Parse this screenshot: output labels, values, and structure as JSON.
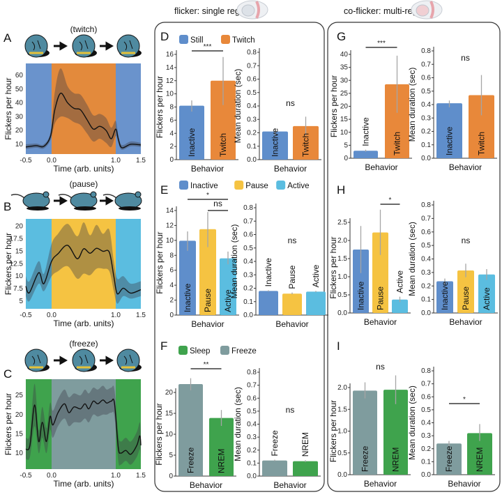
{
  "titles": {
    "single": "flicker: single region",
    "multi": "co-flicker: multi-region"
  },
  "letters": [
    "A",
    "B",
    "C",
    "D",
    "E",
    "F",
    "G",
    "H",
    "I"
  ],
  "behaviors": {
    "A": "(twitch)",
    "B": "(pause)",
    "C": "(freeze)"
  },
  "legends": {
    "D": [
      {
        "label": "Still",
        "color": "#5f8ecb"
      },
      {
        "label": "Twitch",
        "color": "#e8883a"
      }
    ],
    "E": [
      {
        "label": "Inactive",
        "color": "#5f8ecb"
      },
      {
        "label": "Pause",
        "color": "#f5c342"
      },
      {
        "label": "Active",
        "color": "#5bbde0"
      }
    ],
    "F": [
      {
        "label": "Sleep",
        "color": "#3fa34d"
      },
      {
        "label": "Freeze",
        "color": "#7f9c9e"
      }
    ]
  },
  "chart_data": [
    {
      "panel": "A",
      "type": "line",
      "ylabel": "Flickers per hour",
      "xlabel": "Time (arb. units)",
      "xticks": [
        "-0.5",
        "0.0",
        "1.0",
        "1.5"
      ],
      "yticks": [
        10,
        20,
        30,
        40,
        50,
        60
      ],
      "ylim": [
        2.9,
        68.6
      ],
      "regions": [
        {
          "from": -0.5,
          "to": 0,
          "color": "#6a93cc"
        },
        {
          "from": 0,
          "to": 1,
          "color": "#e38a3c"
        },
        {
          "from": 1,
          "to": 1.5,
          "color": "#6a93cc"
        }
      ],
      "points": [
        [
          -0.5,
          8,
          6.5,
          10
        ],
        [
          -0.3,
          9,
          7.5,
          10.5
        ],
        [
          -0.15,
          8.5,
          7,
          10
        ],
        [
          -0.02,
          16,
          13,
          19
        ],
        [
          0.05,
          35,
          25,
          48
        ],
        [
          0.14,
          47,
          30,
          65
        ],
        [
          0.25,
          40,
          29,
          52
        ],
        [
          0.35,
          36,
          26,
          47
        ],
        [
          0.45,
          35,
          24,
          46
        ],
        [
          0.55,
          28,
          18,
          39
        ],
        [
          0.65,
          21,
          12,
          31
        ],
        [
          0.75,
          23,
          14,
          32
        ],
        [
          0.85,
          20,
          11,
          29
        ],
        [
          0.93,
          14,
          8,
          22
        ],
        [
          1.0,
          21,
          16,
          27
        ],
        [
          1.05,
          14,
          11,
          17
        ],
        [
          1.12,
          7.5,
          6,
          9.5
        ],
        [
          1.3,
          10,
          8.5,
          12
        ],
        [
          1.5,
          9.5,
          8,
          11
        ]
      ]
    },
    {
      "panel": "B",
      "type": "line",
      "ylabel": "Flickers per hour",
      "xlabel": "Time (arb. units)",
      "xticks": [
        "-0.5",
        "0.0",
        "1.0",
        "1.5"
      ],
      "yticks": [
        5,
        7.5,
        10,
        12.5,
        15,
        17.5,
        20
      ],
      "ylim": [
        3.46,
        21.5
      ],
      "regions": [
        {
          "from": -0.5,
          "to": 0,
          "color": "#5bbde0"
        },
        {
          "from": 0,
          "to": 1,
          "color": "#f5c342"
        },
        {
          "from": 1,
          "to": 1.5,
          "color": "#5bbde0"
        }
      ],
      "points": [
        [
          -0.5,
          8,
          6,
          10
        ],
        [
          -0.43,
          6.7,
          5,
          9
        ],
        [
          -0.25,
          10.7,
          8.5,
          13
        ],
        [
          -0.15,
          8.5,
          7,
          10.5
        ],
        [
          0.0,
          13,
          10,
          16.5
        ],
        [
          0.1,
          14.5,
          11,
          18.5
        ],
        [
          0.25,
          16.2,
          12,
          20.5
        ],
        [
          0.4,
          13.5,
          9.5,
          18
        ],
        [
          0.5,
          15.5,
          10.5,
          20.8
        ],
        [
          0.6,
          14.6,
          10.2,
          18.2
        ],
        [
          0.7,
          15.6,
          11.5,
          20.3
        ],
        [
          0.8,
          15,
          11.5,
          18.5
        ],
        [
          0.9,
          14.8,
          11,
          19.3
        ],
        [
          0.97,
          10,
          7,
          13
        ],
        [
          1.03,
          6.5,
          4.5,
          9.5
        ],
        [
          1.15,
          7.6,
          6,
          10
        ],
        [
          1.3,
          6.6,
          5.5,
          8.5
        ],
        [
          1.5,
          7.3,
          6,
          9
        ]
      ]
    },
    {
      "panel": "C",
      "type": "line",
      "ylabel": "Flickers per hour",
      "xlabel": "Time (arb. units)",
      "xticks": [
        "-0.5",
        "0.0",
        "1.0",
        "1.5"
      ],
      "yticks": [
        10,
        15,
        20,
        25
      ],
      "ylim": [
        5.84,
        29.2
      ],
      "regions": [
        {
          "from": -0.5,
          "to": 0,
          "color": "#3fa34d"
        },
        {
          "from": 0,
          "to": 1,
          "color": "#7f9c9e"
        },
        {
          "from": 1,
          "to": 1.5,
          "color": "#3fa34d"
        }
      ],
      "points": [
        [
          -0.5,
          11,
          8.5,
          14
        ],
        [
          -0.42,
          12,
          9,
          15
        ],
        [
          -0.33,
          22.5,
          17,
          28
        ],
        [
          -0.25,
          13,
          10,
          16
        ],
        [
          -0.18,
          18,
          14,
          22
        ],
        [
          -0.1,
          13,
          10,
          16.5
        ],
        [
          -0.03,
          19.5,
          16,
          23
        ],
        [
          0.02,
          17.3,
          14,
          21
        ],
        [
          0.1,
          20.5,
          17,
          24
        ],
        [
          0.2,
          22.8,
          19,
          26.5
        ],
        [
          0.27,
          20.5,
          17,
          24.5
        ],
        [
          0.35,
          22,
          18,
          25.5
        ],
        [
          0.45,
          21.5,
          18,
          25
        ],
        [
          0.52,
          22.8,
          19,
          26.5
        ],
        [
          0.58,
          21.5,
          18,
          25.5
        ],
        [
          0.65,
          23.5,
          20,
          27
        ],
        [
          0.72,
          22.8,
          19.5,
          26.5
        ],
        [
          0.8,
          23.8,
          20,
          27.5
        ],
        [
          0.86,
          23,
          20,
          26.5
        ],
        [
          0.93,
          23.5,
          20.5,
          27
        ],
        [
          0.98,
          23,
          19.5,
          26.5
        ],
        [
          1.05,
          11.5,
          8,
          15
        ],
        [
          1.1,
          10,
          7,
          13
        ],
        [
          1.2,
          10.7,
          8,
          14
        ],
        [
          1.3,
          9.7,
          7,
          13
        ],
        [
          1.42,
          12,
          9,
          15.5
        ],
        [
          1.48,
          14.5,
          11,
          18
        ],
        [
          1.5,
          12,
          9,
          15
        ]
      ]
    },
    {
      "panel": "D",
      "type": "bar",
      "ylabel": "Flickers per hour",
      "xlabel": "Behavior",
      "yticks": [
        "0",
        "2",
        "4",
        "6",
        "8",
        "10",
        "12",
        "14",
        "16"
      ],
      "ymax": 16,
      "bars": [
        {
          "label": "Inactive",
          "value": 8.2,
          "err": [
            7.3,
            9.0
          ],
          "color": "#5f8ecb"
        },
        {
          "label": "Twitch",
          "value": 12.0,
          "err": [
            8.3,
            15.6
          ],
          "color": "#e8883a"
        }
      ],
      "sig": [
        {
          "from": 0,
          "to": 1,
          "label": "***"
        }
      ]
    },
    {
      "panel": "D",
      "type": "bar",
      "ylabel": "Mean duration (sec)",
      "xlabel": "Behavior",
      "yticks": [
        "0.0",
        "0.1",
        "0.2",
        "0.3",
        "0.4",
        "0.5",
        "0.6",
        "0.7",
        "0.8"
      ],
      "ymax": 0.8,
      "bars": [
        {
          "label": "Inactive",
          "value": 0.21,
          "err": [
            0.18,
            0.23
          ],
          "color": "#5f8ecb"
        },
        {
          "label": "Twitch",
          "value": 0.25,
          "err": [
            0.18,
            0.32
          ],
          "color": "#e8883a"
        }
      ],
      "sig": [
        {
          "from": null,
          "to": null,
          "label": "ns"
        }
      ]
    },
    {
      "panel": "E",
      "type": "bar",
      "ylabel": "Flickers per hour",
      "xlabel": "Behavior",
      "yticks": [
        "0",
        "2",
        "4",
        "6",
        "8",
        "10",
        "12",
        "14"
      ],
      "ymax": 14,
      "bars": [
        {
          "label": "Inactive",
          "value": 9.95,
          "err": [
            8.6,
            11.2
          ],
          "color": "#5f8ecb"
        },
        {
          "label": "Pause",
          "value": 11.5,
          "err": [
            9.1,
            13.8
          ],
          "color": "#f5c342"
        },
        {
          "label": "Active",
          "value": 7.6,
          "err": [
            6.8,
            8.5
          ],
          "color": "#5bbde0"
        }
      ],
      "sig": [
        {
          "from": 0,
          "to": 2,
          "label": "*"
        },
        {
          "from": 1,
          "to": 2,
          "label": "ns"
        }
      ]
    },
    {
      "panel": "E",
      "type": "bar",
      "ylabel": "Mean duration (sec)",
      "xlabel": "Behavior",
      "yticks": [
        "0.0",
        "0.1",
        "0.2",
        "0.3",
        "0.4",
        "0.5",
        "0.6",
        "0.7",
        "0.8"
      ],
      "ymax": 0.8,
      "bars": [
        {
          "label": "Inactive",
          "value": 0.18,
          "err": [
            0.175,
            0.185
          ],
          "color": "#5f8ecb",
          "outside": true
        },
        {
          "label": "Pause",
          "value": 0.16,
          "err": [
            0.155,
            0.168
          ],
          "color": "#f5c342",
          "outside": true
        },
        {
          "label": "Active",
          "value": 0.175,
          "err": [
            0.17,
            0.18
          ],
          "color": "#5bbde0",
          "outside": true
        }
      ],
      "sig": [
        {
          "from": null,
          "to": null,
          "label": "ns"
        }
      ]
    },
    {
      "panel": "F",
      "type": "bar",
      "ylabel": "Flickers per hour",
      "xlabel": "Behavior",
      "yticks": [
        "0",
        "5",
        "10",
        "15",
        "20"
      ],
      "ymax": 20,
      "bars": [
        {
          "label": "Freeze",
          "value": 22.0,
          "err": [
            20.5,
            23.4
          ],
          "color": "#7f9c9e"
        },
        {
          "label": "NREM",
          "value": 13.9,
          "err": [
            12.0,
            15.8
          ],
          "color": "#3fa34d"
        }
      ],
      "sig": [
        {
          "from": 0,
          "to": 1,
          "label": "**"
        }
      ]
    },
    {
      "panel": "F",
      "type": "bar",
      "ylabel": "Mean duration (sec)",
      "xlabel": "Behavior",
      "yticks": [
        "0.0",
        "0.1",
        "0.2",
        "0.3",
        "0.4",
        "0.5",
        "0.6",
        "0.7",
        "0.8"
      ],
      "ymax": 0.8,
      "bars": [
        {
          "label": "Freeze",
          "value": 0.12,
          "err": [
            0.115,
            0.126
          ],
          "color": "#7f9c9e",
          "outside": true
        },
        {
          "label": "NREM",
          "value": 0.115,
          "err": [
            0.108,
            0.122
          ],
          "color": "#3fa34d",
          "outside": true
        }
      ],
      "sig": [
        {
          "from": null,
          "to": null,
          "label": "ns"
        }
      ]
    },
    {
      "panel": "G",
      "type": "bar",
      "ylabel": "Flickers per hour",
      "xlabel": "Behavior",
      "yticks": [
        "0",
        "5",
        "10",
        "15",
        "20",
        "25",
        "30",
        "35",
        "40"
      ],
      "ymax": 40,
      "bars": [
        {
          "label": "Inactive",
          "value": 2.9,
          "err": [
            2.5,
            3.3
          ],
          "color": "#5f8ecb",
          "outside": true
        },
        {
          "label": "Twitch",
          "value": 28.5,
          "err": [
            17.5,
            39.5
          ],
          "color": "#e8883a"
        }
      ],
      "sig": [
        {
          "from": 0,
          "to": 1,
          "label": "***"
        }
      ]
    },
    {
      "panel": "G",
      "type": "bar",
      "ylabel": "Mean duration (sec)",
      "xlabel": "Behavior",
      "yticks": [
        "0.0",
        "0.1",
        "0.2",
        "0.3",
        "0.4",
        "0.5",
        "0.6",
        "0.7",
        "0.8"
      ],
      "ymax": 0.8,
      "bars": [
        {
          "label": "Inactive",
          "value": 0.41,
          "err": [
            0.38,
            0.43
          ],
          "color": "#5f8ecb"
        },
        {
          "label": "Twitch",
          "value": 0.47,
          "err": [
            0.32,
            0.62
          ],
          "color": "#e8883a"
        }
      ],
      "sig": [
        {
          "from": null,
          "to": null,
          "label": "ns"
        }
      ]
    },
    {
      "panel": "H",
      "type": "bar",
      "ylabel": "Flickers per hour",
      "xlabel": "Behavior",
      "yticks": [
        "0.0",
        "0.5",
        "1.0",
        "1.5",
        "2.0",
        "2.5"
      ],
      "ymax": 2.5,
      "bars": [
        {
          "label": "Inactive",
          "value": 1.75,
          "err": [
            1.1,
            2.4
          ],
          "color": "#5f8ecb"
        },
        {
          "label": "Pause",
          "value": 2.22,
          "err": [
            1.6,
            2.85
          ],
          "color": "#f5c342"
        },
        {
          "label": "Active",
          "value": 0.37,
          "err": [
            0.3,
            0.45
          ],
          "color": "#5bbde0",
          "outside": true
        }
      ],
      "sig": [
        {
          "from": 1,
          "to": 2,
          "label": "*"
        }
      ]
    },
    {
      "panel": "H",
      "type": "bar",
      "ylabel": "Mean duration (sec)",
      "xlabel": "Behavior",
      "yticks": [
        "0.0",
        "0.1",
        "0.2",
        "0.3",
        "0.4",
        "0.5",
        "0.6",
        "0.7",
        "0.8"
      ],
      "ymax": 0.8,
      "bars": [
        {
          "label": "Inactive",
          "value": 0.235,
          "err": [
            0.21,
            0.255
          ],
          "color": "#5f8ecb"
        },
        {
          "label": "Pause",
          "value": 0.315,
          "err": [
            0.265,
            0.365
          ],
          "color": "#f5c342"
        },
        {
          "label": "Active",
          "value": 0.285,
          "err": [
            0.245,
            0.325
          ],
          "color": "#5bbde0"
        }
      ],
      "sig": [
        {
          "from": null,
          "to": null,
          "label": "ns"
        }
      ]
    },
    {
      "panel": "I",
      "type": "bar",
      "ylabel": "Flickers per hour",
      "xlabel": "Behavior",
      "yticks": [
        "0.0",
        "0.5",
        "1.0",
        "1.5",
        "2.0"
      ],
      "ymax": 2.0,
      "bars": [
        {
          "label": "Freeze",
          "value": 1.93,
          "err": [
            1.75,
            2.12
          ],
          "color": "#7f9c9e"
        },
        {
          "label": "NREM",
          "value": 1.95,
          "err": [
            1.62,
            2.28
          ],
          "color": "#3fa34d"
        }
      ],
      "sig": [
        {
          "from": null,
          "to": null,
          "label": "ns"
        }
      ]
    },
    {
      "panel": "I",
      "type": "bar",
      "ylabel": "Mean duration (sec)",
      "xlabel": "Behavior",
      "yticks": [
        "0.0",
        "0.1",
        "0.2",
        "0.3",
        "0.4",
        "0.5",
        "0.6",
        "0.7",
        "0.8"
      ],
      "ymax": 0.8,
      "bars": [
        {
          "label": "Freeze",
          "value": 0.24,
          "err": [
            0.22,
            0.26
          ],
          "color": "#7f9c9e"
        },
        {
          "label": "NREM",
          "value": 0.32,
          "err": [
            0.26,
            0.39
          ],
          "color": "#3fa34d"
        }
      ],
      "sig": [
        {
          "from": 0,
          "to": 1,
          "label": "*"
        }
      ]
    }
  ]
}
